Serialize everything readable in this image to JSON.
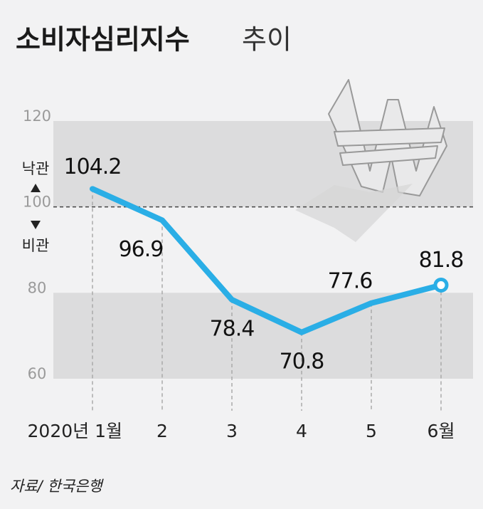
{
  "chart_data": {
    "type": "line",
    "title": "소비자심리지수",
    "subtitle": "추이",
    "categories": [
      "2020년 1월",
      "2",
      "3",
      "4",
      "5",
      "6월"
    ],
    "series": [
      {
        "name": "소비자심리지수",
        "color": "#2aaee6",
        "values": [
          104.2,
          96.9,
          78.4,
          70.8,
          77.6,
          81.8
        ]
      }
    ],
    "ylim": [
      60,
      120
    ],
    "yticks": [
      60,
      80,
      100,
      120
    ],
    "threshold": 100,
    "annotations": {
      "above": "낙관",
      "below": "비관"
    },
    "source": "자료/ 한국은행"
  }
}
